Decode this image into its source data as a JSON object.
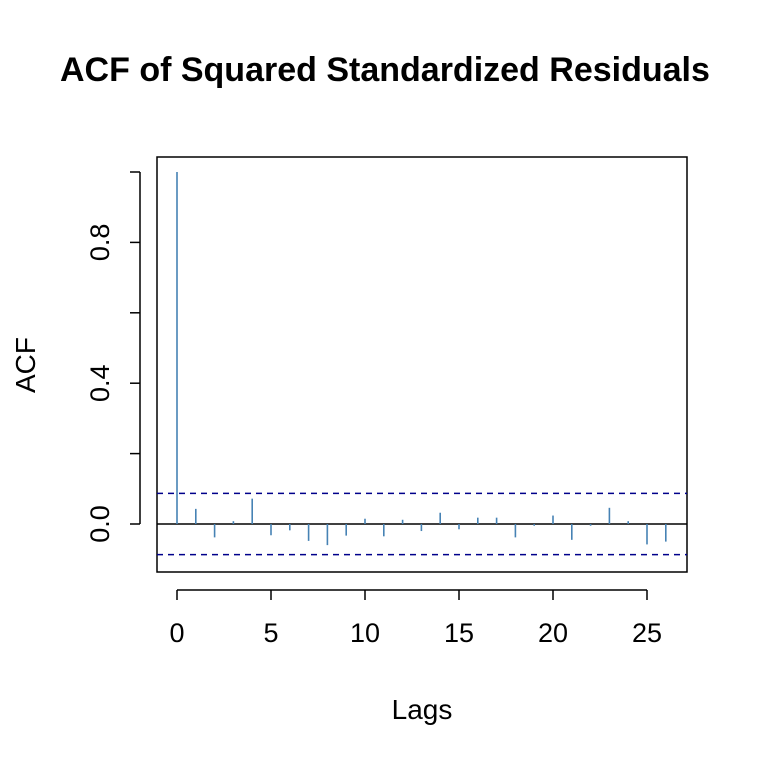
{
  "chart_data": {
    "type": "bar",
    "title": "ACF of Squared Standardized Residuals",
    "xlabel": "Lags",
    "ylabel": "ACF",
    "xlim": [
      -1,
      27
    ],
    "ylim": [
      -0.13,
      1.05
    ],
    "x_ticks": [
      0,
      5,
      10,
      15,
      20,
      25
    ],
    "y_ticks": [
      0.0,
      0.4,
      0.8
    ],
    "y_tick_labels": [
      "0.0",
      "0.4",
      "0.8"
    ],
    "y_minor_ticks": [
      0.2,
      0.6,
      1.0
    ],
    "lags": [
      0,
      1,
      2,
      3,
      4,
      5,
      6,
      7,
      8,
      9,
      10,
      11,
      12,
      13,
      14,
      15,
      16,
      17,
      18,
      19,
      20,
      21,
      22,
      23,
      24,
      25,
      26
    ],
    "values": [
      1.0,
      0.043,
      -0.038,
      0.008,
      0.072,
      -0.032,
      -0.018,
      -0.048,
      -0.06,
      -0.033,
      0.015,
      -0.035,
      0.012,
      -0.02,
      0.032,
      -0.015,
      0.018,
      0.018,
      -0.038,
      -0.005,
      0.024,
      -0.045,
      -0.005,
      0.046,
      0.008,
      -0.058,
      -0.05
    ],
    "confidence_band": 0.087,
    "bar_color": "#4682B4",
    "band_color": "#00008B",
    "grid": false
  }
}
